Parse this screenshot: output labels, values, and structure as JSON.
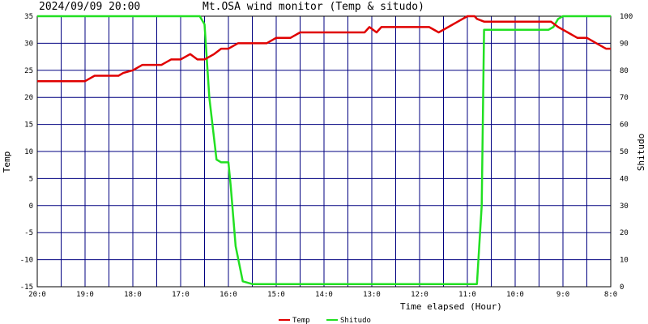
{
  "timestamp": "2024/09/09 20:00",
  "colors": {
    "temp": "#e00000",
    "shitudo": "#22e022",
    "grid": "#000080",
    "background": "#ffffff"
  },
  "chart_data": {
    "type": "line",
    "title": "Mt.OSA wind monitor (Temp & situdo)",
    "xlabel": "Time elapsed (Hour)",
    "ylabel_left": "Temp",
    "ylabel_right": "Shitudo",
    "x_tick_labels": [
      "20:0",
      "19:0",
      "18:0",
      "17:0",
      "16:0",
      "15:0",
      "14:0",
      "13:0",
      "12:0",
      "11:0",
      "10:0",
      "9:0",
      "8:0"
    ],
    "x_unit": "hours elapsed",
    "xlim": [
      0,
      12
    ],
    "ylim_left": [
      -15,
      35
    ],
    "yticks_left": [
      -15,
      -10,
      -5,
      0,
      5,
      10,
      15,
      20,
      25,
      30,
      35
    ],
    "ylim_right": [
      0,
      100
    ],
    "yticks_right": [
      0,
      10,
      20,
      30,
      40,
      50,
      60,
      70,
      80,
      90,
      100
    ],
    "grid": true,
    "legend_position": "bottom-center",
    "series": [
      {
        "name": "Temp",
        "axis": "left",
        "x": [
          0,
          1.0,
          1.2,
          1.7,
          1.8,
          2.0,
          2.2,
          2.6,
          2.8,
          3.0,
          3.2,
          3.35,
          3.5,
          3.7,
          3.85,
          4.0,
          4.2,
          4.6,
          4.8,
          5.0,
          5.3,
          5.5,
          5.7,
          6.0,
          6.3,
          6.6,
          6.85,
          6.95,
          7.1,
          7.2,
          7.4,
          7.7,
          8.0,
          8.2,
          8.4,
          8.6,
          8.8,
          9.0,
          9.15,
          9.2,
          9.35,
          9.6,
          10.0,
          10.4,
          10.75,
          10.9,
          11.1,
          11.3,
          11.5,
          11.7,
          11.9,
          12.0
        ],
        "values": [
          23,
          23,
          24,
          24,
          24.5,
          25,
          26,
          26,
          27,
          27,
          28,
          27,
          27,
          28,
          29,
          29,
          30,
          30,
          30,
          31,
          31,
          32,
          32,
          32,
          32,
          32,
          32,
          33,
          32,
          33,
          33,
          33,
          33,
          33,
          32,
          33,
          34,
          35,
          35,
          34.5,
          34,
          34,
          34,
          34,
          34,
          33,
          32,
          31,
          31,
          30,
          29,
          29
        ]
      },
      {
        "name": "Shitudo",
        "axis": "right",
        "x": [
          0,
          3.4,
          3.5,
          3.6,
          3.75,
          3.85,
          4.0,
          4.05,
          4.15,
          4.3,
          4.5,
          5.0,
          6.0,
          7.0,
          8.0,
          9.0,
          9.2,
          9.3,
          9.35,
          10.0,
          10.5,
          10.7,
          10.8,
          10.9,
          11.0,
          12.0
        ],
        "values": [
          100,
          100,
          97,
          70,
          47,
          46,
          46,
          37,
          15,
          2,
          1,
          1,
          1,
          1,
          1,
          1,
          1,
          30,
          95,
          95,
          95,
          95,
          96,
          99,
          100,
          100
        ]
      }
    ]
  }
}
